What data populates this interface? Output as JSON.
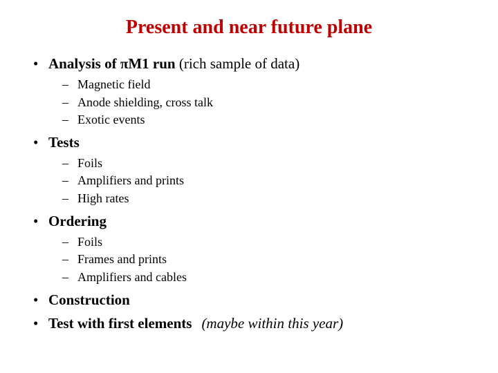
{
  "title": "Present and near future plane",
  "colors": {
    "title": "#c00000",
    "text": "#000000",
    "background": "#ffffff"
  },
  "typography": {
    "font_family": "Times New Roman",
    "title_fontsize": 28,
    "main_fontsize": 21,
    "sub_fontsize": 18
  },
  "items": [
    {
      "label_bold": "Analysis of πM1 run",
      "label_normal": " (rich sample of data)",
      "sub": [
        "Magnetic field",
        "Anode shielding, cross talk",
        "Exotic events"
      ]
    },
    {
      "label_bold": "Tests",
      "sub": [
        "Foils",
        "Amplifiers and prints",
        "High rates"
      ]
    },
    {
      "label_bold": "Ordering",
      "sub": [
        "Foils",
        "Frames and prints",
        "Amplifiers and cables"
      ]
    },
    {
      "label_bold": "Construction"
    },
    {
      "label_bold": "Test with first elements",
      "inline_note": "(maybe within this year)"
    }
  ]
}
